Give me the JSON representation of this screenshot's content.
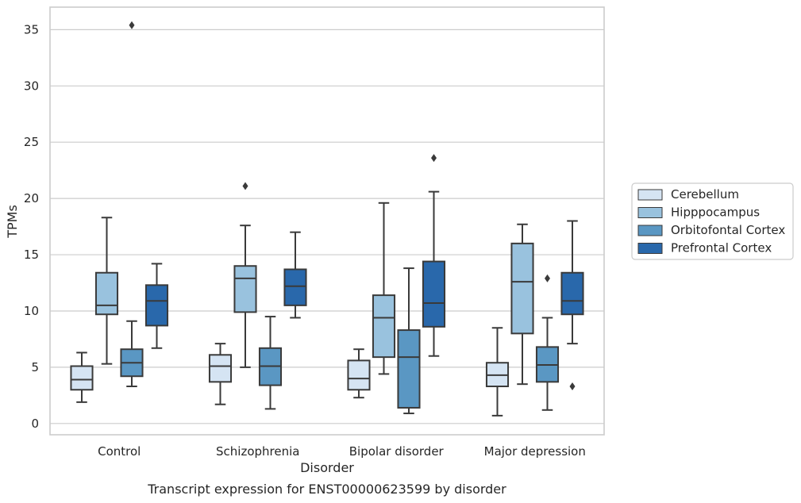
{
  "chart_data": {
    "type": "box",
    "xlabel": "Disorder",
    "ylabel": "TPMs",
    "caption": "Transcript expression for ENST00000623599 by disorder",
    "ylim": [
      -1,
      37
    ],
    "yticks": [
      0,
      5,
      10,
      15,
      20,
      25,
      30,
      35
    ],
    "categories": [
      "Control",
      "Schizophrenia",
      "Bipolar disorder",
      "Major depression"
    ],
    "grid": "horizontal",
    "legend": "right",
    "series": [
      {
        "name": "Cerebellum",
        "color": "#d5e4f3",
        "boxes": [
          {
            "whisker_low": 1.9,
            "q1": 3.0,
            "median": 3.9,
            "q3": 5.1,
            "whisker_high": 6.3,
            "outliers": []
          },
          {
            "whisker_low": 1.7,
            "q1": 3.7,
            "median": 5.1,
            "q3": 6.1,
            "whisker_high": 7.1,
            "outliers": []
          },
          {
            "whisker_low": 2.3,
            "q1": 3.0,
            "median": 4.0,
            "q3": 5.6,
            "whisker_high": 6.6,
            "outliers": []
          },
          {
            "whisker_low": 0.7,
            "q1": 3.3,
            "median": 4.3,
            "q3": 5.4,
            "whisker_high": 8.5,
            "outliers": []
          }
        ]
      },
      {
        "name": "Hipppocampus",
        "color": "#99c2de",
        "boxes": [
          {
            "whisker_low": 5.3,
            "q1": 9.7,
            "median": 10.5,
            "q3": 13.4,
            "whisker_high": 18.3,
            "outliers": []
          },
          {
            "whisker_low": 5.0,
            "q1": 9.9,
            "median": 12.9,
            "q3": 14.0,
            "whisker_high": 17.6,
            "outliers": [
              21.1
            ]
          },
          {
            "whisker_low": 4.4,
            "q1": 5.9,
            "median": 9.4,
            "q3": 11.4,
            "whisker_high": 19.6,
            "outliers": []
          },
          {
            "whisker_low": 3.5,
            "q1": 8.0,
            "median": 12.6,
            "q3": 16.0,
            "whisker_high": 17.7,
            "outliers": []
          }
        ]
      },
      {
        "name": "Orbitofontal Cortex",
        "color": "#5a97c3",
        "boxes": [
          {
            "whisker_low": 3.3,
            "q1": 4.2,
            "median": 5.4,
            "q3": 6.6,
            "whisker_high": 9.1,
            "outliers": [
              35.4
            ]
          },
          {
            "whisker_low": 1.3,
            "q1": 3.4,
            "median": 5.1,
            "q3": 6.7,
            "whisker_high": 9.5,
            "outliers": []
          },
          {
            "whisker_low": 0.9,
            "q1": 1.4,
            "median": 5.9,
            "q3": 8.3,
            "whisker_high": 13.8,
            "outliers": []
          },
          {
            "whisker_low": 1.2,
            "q1": 3.7,
            "median": 5.2,
            "q3": 6.8,
            "whisker_high": 9.4,
            "outliers": [
              12.9
            ]
          }
        ]
      },
      {
        "name": "Prefrontal Cortex",
        "color": "#2968ab",
        "boxes": [
          {
            "whisker_low": 6.7,
            "q1": 8.7,
            "median": 10.9,
            "q3": 12.3,
            "whisker_high": 14.2,
            "outliers": []
          },
          {
            "whisker_low": 9.4,
            "q1": 10.5,
            "median": 12.2,
            "q3": 13.7,
            "whisker_high": 17.0,
            "outliers": []
          },
          {
            "whisker_low": 6.0,
            "q1": 8.6,
            "median": 10.7,
            "q3": 14.4,
            "whisker_high": 20.6,
            "outliers": [
              23.6
            ]
          },
          {
            "whisker_low": 7.1,
            "q1": 9.7,
            "median": 10.9,
            "q3": 13.4,
            "whisker_high": 18.0,
            "outliers": [
              3.3
            ]
          }
        ]
      }
    ]
  }
}
